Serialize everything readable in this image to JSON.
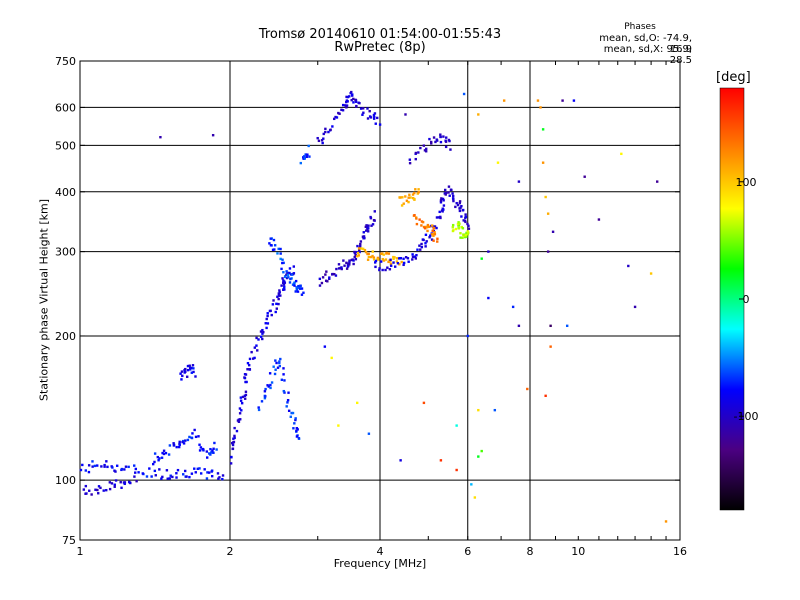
{
  "chart_data": {
    "type": "scatter",
    "title": "Tromsø 20140610 01:54:00-01:55:43",
    "subtitle": "RwPretec (8p)",
    "xlabel": "Frequency [MHz]",
    "ylabel": "Stationary phase Virtual Height [km]",
    "x_scale": "log",
    "y_scale": "log",
    "xlim": [
      1,
      16
    ],
    "ylim": [
      75,
      750
    ],
    "x_ticks": [
      1,
      2,
      4,
      6,
      8,
      10,
      16
    ],
    "y_ticks": [
      75,
      100,
      200,
      300,
      400,
      500,
      600,
      750
    ],
    "x_grid": [
      2,
      4,
      6,
      8
    ],
    "y_grid": [
      100,
      200,
      300,
      400,
      500,
      600
    ],
    "grid": true,
    "stats": {
      "heading": "Phases",
      "line1": "mean, sd,O: -74.9, 16.9",
      "line2": "mean, sd,X:  95.9, 28.5"
    },
    "colorbar": {
      "label": "[deg]",
      "range": [
        -180,
        180
      ],
      "ticks": [
        100,
        0,
        -100
      ],
      "colors": [
        "#000000",
        "#4b0082",
        "#0000ff",
        "#00ffff",
        "#00ff00",
        "#ffff00",
        "#ff7f00",
        "#ff0000"
      ]
    },
    "traces": [
      {
        "points": [
          [
            1.0,
            105
          ],
          [
            1.1,
            108
          ],
          [
            1.2,
            106
          ],
          [
            1.35,
            104
          ],
          [
            1.5,
            103
          ],
          [
            1.65,
            104
          ],
          [
            1.8,
            103
          ],
          [
            1.95,
            102
          ]
        ],
        "phase": -80
      },
      {
        "points": [
          [
            1.0,
            95
          ],
          [
            1.1,
            96
          ],
          [
            1.2,
            98
          ],
          [
            1.3,
            100
          ]
        ],
        "phase": -95
      },
      {
        "points": [
          [
            1.4,
            110
          ],
          [
            1.5,
            115
          ],
          [
            1.6,
            120
          ],
          [
            1.7,
            125
          ],
          [
            1.8,
            112
          ],
          [
            1.9,
            118
          ]
        ],
        "phase": -75
      },
      {
        "points": [
          [
            1.6,
            165
          ],
          [
            1.65,
            172
          ],
          [
            1.7,
            168
          ]
        ],
        "phase": -85
      },
      {
        "points": [
          [
            2.0,
            110
          ],
          [
            2.05,
            125
          ],
          [
            2.1,
            140
          ],
          [
            2.15,
            160
          ],
          [
            2.2,
            180
          ],
          [
            2.3,
            200
          ],
          [
            2.4,
            220
          ],
          [
            2.5,
            240
          ],
          [
            2.55,
            255
          ],
          [
            2.6,
            265
          ],
          [
            2.7,
            275
          ]
        ],
        "phase": -90
      },
      {
        "points": [
          [
            2.3,
            140
          ],
          [
            2.4,
            160
          ],
          [
            2.5,
            180
          ],
          [
            2.6,
            150
          ],
          [
            2.7,
            130
          ],
          [
            2.75,
            120
          ]
        ],
        "phase": -70
      },
      {
        "points": [
          [
            2.4,
            320
          ],
          [
            2.5,
            300
          ],
          [
            2.6,
            270
          ],
          [
            2.7,
            255
          ],
          [
            2.75,
            250
          ],
          [
            2.8,
            250
          ]
        ],
        "phase": -65
      },
      {
        "points": [
          [
            2.8,
            470
          ],
          [
            2.9,
            490
          ]
        ],
        "phase": -70
      },
      {
        "points": [
          [
            3.0,
            260
          ],
          [
            3.2,
            270
          ],
          [
            3.4,
            280
          ],
          [
            3.5,
            285
          ],
          [
            3.6,
            300
          ],
          [
            3.7,
            320
          ],
          [
            3.8,
            340
          ],
          [
            3.9,
            360
          ]
        ],
        "phase": -100
      },
      {
        "points": [
          [
            3.0,
            510
          ],
          [
            3.2,
            550
          ],
          [
            3.4,
            600
          ],
          [
            3.5,
            640
          ],
          [
            3.6,
            610
          ],
          [
            3.8,
            580
          ],
          [
            4.0,
            560
          ]
        ],
        "phase": -95
      },
      {
        "points": [
          [
            3.6,
            300
          ],
          [
            3.8,
            295
          ],
          [
            4.0,
            295
          ],
          [
            4.2,
            290
          ],
          [
            4.4,
            288
          ]
        ],
        "phase": 110
      },
      {
        "points": [
          [
            3.9,
            280
          ],
          [
            4.2,
            282
          ],
          [
            4.5,
            290
          ],
          [
            4.8,
            300
          ],
          [
            5.0,
            320
          ],
          [
            5.2,
            350
          ],
          [
            5.4,
            380
          ]
        ],
        "phase": -90
      },
      {
        "points": [
          [
            4.7,
            350
          ],
          [
            4.9,
            340
          ],
          [
            5.1,
            330
          ],
          [
            5.2,
            320
          ]
        ],
        "phase": 130
      },
      {
        "points": [
          [
            4.4,
            380
          ],
          [
            4.6,
            390
          ],
          [
            4.8,
            400
          ]
        ],
        "phase": 115
      },
      {
        "points": [
          [
            5.3,
            380
          ],
          [
            5.5,
            400
          ],
          [
            5.7,
            380
          ],
          [
            5.9,
            360
          ],
          [
            6.0,
            340
          ]
        ],
        "phase": -100
      },
      {
        "points": [
          [
            5.6,
            330
          ],
          [
            5.8,
            340
          ],
          [
            5.9,
            320
          ],
          [
            6.0,
            330
          ]
        ],
        "phase": 60
      },
      {
        "points": [
          [
            4.6,
            460
          ],
          [
            5.0,
            500
          ],
          [
            5.3,
            520
          ],
          [
            5.6,
            500
          ]
        ],
        "phase": -100
      }
    ],
    "points": [
      [
        1.45,
        520,
        -110
      ],
      [
        1.85,
        525,
        -110
      ],
      [
        4.5,
        580,
        -110
      ],
      [
        5.9,
        640,
        -60
      ],
      [
        6.3,
        580,
        110
      ],
      [
        7.1,
        620,
        120
      ],
      [
        8.3,
        620,
        120
      ],
      [
        8.4,
        600,
        120
      ],
      [
        9.3,
        620,
        -120
      ],
      [
        9.8,
        620,
        -80
      ],
      [
        8.5,
        540,
        20
      ],
      [
        8.5,
        460,
        120
      ],
      [
        6.9,
        460,
        80
      ],
      [
        7.6,
        420,
        -100
      ],
      [
        10.3,
        430,
        -120
      ],
      [
        12.2,
        480,
        80
      ],
      [
        14.4,
        420,
        -120
      ],
      [
        8.6,
        390,
        100
      ],
      [
        8.7,
        360,
        110
      ],
      [
        11.0,
        350,
        -120
      ],
      [
        8.9,
        330,
        -110
      ],
      [
        6.6,
        300,
        -100
      ],
      [
        6.4,
        290,
        20
      ],
      [
        8.7,
        300,
        -120
      ],
      [
        12.6,
        280,
        -100
      ],
      [
        14.0,
        270,
        100
      ],
      [
        6.6,
        240,
        -80
      ],
      [
        7.4,
        230,
        -70
      ],
      [
        13.0,
        230,
        -110
      ],
      [
        7.6,
        210,
        -110
      ],
      [
        8.8,
        210,
        -140
      ],
      [
        9.5,
        210,
        -60
      ],
      [
        6.0,
        200,
        -70
      ],
      [
        8.8,
        190,
        140
      ],
      [
        3.1,
        190,
        -80
      ],
      [
        3.2,
        180,
        80
      ],
      [
        7.9,
        155,
        140
      ],
      [
        3.6,
        145,
        80
      ],
      [
        4.9,
        145,
        150
      ],
      [
        8.6,
        150,
        160
      ],
      [
        6.3,
        140,
        90
      ],
      [
        6.8,
        140,
        -60
      ],
      [
        5.7,
        130,
        -20
      ],
      [
        4.4,
        110,
        -90
      ],
      [
        5.3,
        110,
        160
      ],
      [
        6.3,
        112,
        20
      ],
      [
        6.4,
        115,
        40
      ],
      [
        5.7,
        105,
        160
      ],
      [
        6.1,
        98,
        -40
      ],
      [
        6.2,
        92,
        90
      ],
      [
        15.0,
        82,
        120
      ],
      [
        3.3,
        130,
        80
      ],
      [
        3.8,
        125,
        -60
      ]
    ]
  }
}
